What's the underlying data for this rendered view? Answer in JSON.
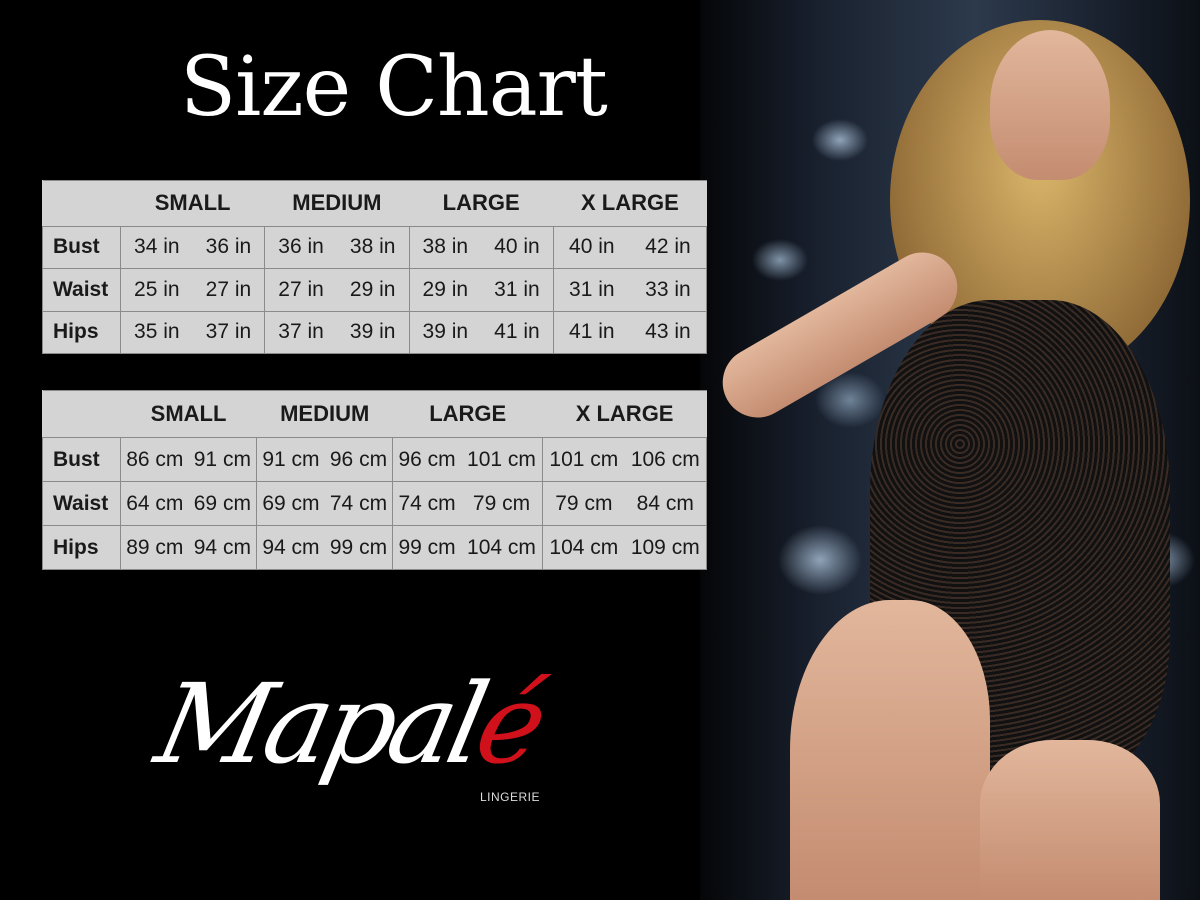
{
  "title": "Size Chart",
  "sizes": [
    "SMALL",
    "MEDIUM",
    "LARGE",
    "X LARGE"
  ],
  "inches_table": {
    "rows": [
      {
        "label": "Bust",
        "values": [
          "34 in",
          "36 in",
          "36 in",
          "38 in",
          "38 in",
          "40 in",
          "40 in",
          "42 in"
        ]
      },
      {
        "label": "Waist",
        "values": [
          "25 in",
          "27 in",
          "27 in",
          "29 in",
          "29 in",
          "31 in",
          "31 in",
          "33 in"
        ]
      },
      {
        "label": "Hips",
        "values": [
          "35 in",
          "37 in",
          "37 in",
          "39 in",
          "39 in",
          "41 in",
          "41 in",
          "43 in"
        ]
      }
    ]
  },
  "cm_table": {
    "rows": [
      {
        "label": "Bust",
        "values": [
          "86 cm",
          "91 cm",
          "91 cm",
          "96 cm",
          "96 cm",
          "101 cm",
          "101 cm",
          "106 cm"
        ]
      },
      {
        "label": "Waist",
        "values": [
          "64 cm",
          "69 cm",
          "69 cm",
          "74 cm",
          "74 cm",
          "79 cm",
          "79 cm",
          "84 cm"
        ]
      },
      {
        "label": "Hips",
        "values": [
          "89 cm",
          "94 cm",
          "94 cm",
          "99 cm",
          "99 cm",
          "104 cm",
          "104 cm",
          "109 cm"
        ]
      }
    ]
  },
  "logo": {
    "main": "Mapal",
    "accent": "é",
    "sub": "LINGERIE",
    "accent_color": "#d0101a"
  },
  "colors": {
    "table_bg": "#d4d4d4",
    "background": "#000000"
  }
}
